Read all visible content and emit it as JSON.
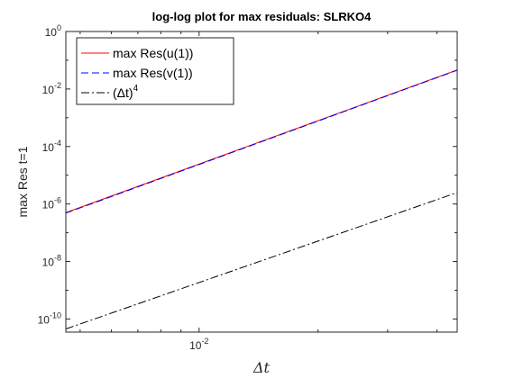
{
  "chart_data": {
    "type": "line",
    "title": "log-log plot for max residuals: SLRKO4",
    "xlabel": "Δt",
    "ylabel": "max Res t=1",
    "xscale": "log",
    "yscale": "log",
    "xlim": [
      0.0046,
      0.045
    ],
    "ylim": [
      3.5e-11,
      1
    ],
    "grid": false,
    "legend_position": "top-left",
    "x_ticks": [
      {
        "value": 0.01,
        "base": "10",
        "exp": "-2"
      }
    ],
    "y_ticks": [
      {
        "value": 1,
        "base": "10",
        "exp": "0"
      },
      {
        "value": 0.01,
        "base": "10",
        "exp": "-2"
      },
      {
        "value": 0.0001,
        "base": "10",
        "exp": "-4"
      },
      {
        "value": 1e-06,
        "base": "10",
        "exp": "-6"
      },
      {
        "value": 1e-08,
        "base": "10",
        "exp": "-8"
      },
      {
        "value": 1e-10,
        "base": "10",
        "exp": "-10"
      }
    ],
    "series": [
      {
        "name": "max Res(u(1))",
        "color": "#ff0000",
        "dash": "solid",
        "x": [
          0.0046,
          0.045
        ],
        "y": [
          5e-07,
          0.046
        ]
      },
      {
        "name": "max Res(v(1))",
        "color": "#0000ff",
        "dash": "dashed",
        "x": [
          0.0046,
          0.045
        ],
        "y": [
          4.8e-07,
          0.045
        ]
      },
      {
        "name": "(Δt)",
        "name_sup": "4",
        "color": "#000000",
        "dash": "dashdot",
        "x": [
          0.0046,
          0.045
        ],
        "y": [
          4.5e-11,
          2.5e-06
        ]
      }
    ]
  }
}
